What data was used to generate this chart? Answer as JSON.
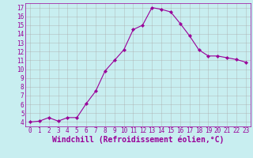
{
  "x": [
    0,
    1,
    2,
    3,
    4,
    5,
    6,
    7,
    8,
    9,
    10,
    11,
    12,
    13,
    14,
    15,
    16,
    17,
    18,
    19,
    20,
    21,
    22,
    23
  ],
  "y": [
    4.0,
    4.1,
    4.5,
    4.1,
    4.5,
    4.5,
    6.1,
    7.5,
    9.8,
    11.0,
    12.2,
    14.5,
    15.0,
    17.0,
    16.8,
    16.5,
    15.2,
    13.8,
    12.2,
    11.5,
    11.5,
    11.3,
    11.1,
    10.8
  ],
  "line_color": "#990099",
  "marker": "D",
  "marker_size": 2.2,
  "bg_color": "#c8eef0",
  "grid_color": "#aaaaaa",
  "xlabel": "Windchill (Refroidissement éolien,°C)",
  "xlim": [
    -0.5,
    23.5
  ],
  "ylim": [
    3.5,
    17.5
  ],
  "yticks": [
    4,
    5,
    6,
    7,
    8,
    9,
    10,
    11,
    12,
    13,
    14,
    15,
    16,
    17
  ],
  "xticks": [
    0,
    1,
    2,
    3,
    4,
    5,
    6,
    7,
    8,
    9,
    10,
    11,
    12,
    13,
    14,
    15,
    16,
    17,
    18,
    19,
    20,
    21,
    22,
    23
  ],
  "tick_label_color": "#990099",
  "xlabel_color": "#990099",
  "tick_fontsize": 5.5,
  "xlabel_fontsize": 7.0
}
